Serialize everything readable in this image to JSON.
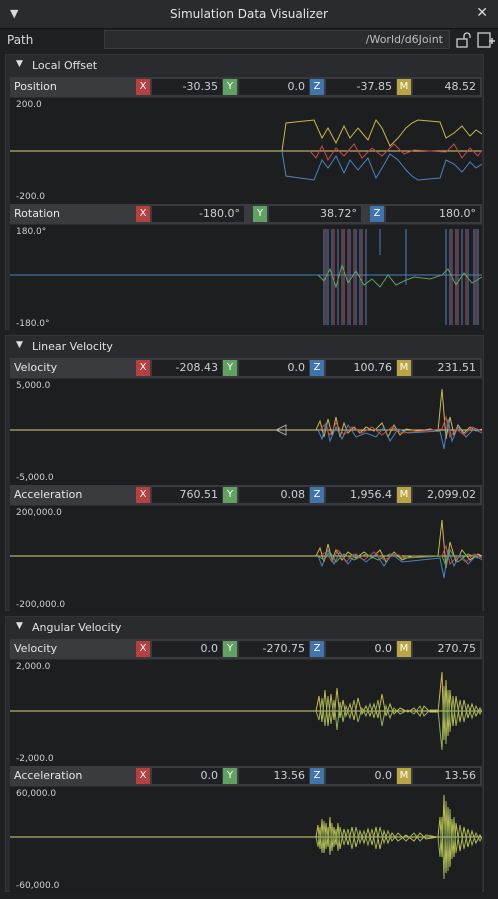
{
  "window": {
    "title": "Simulation Data Visualizer"
  },
  "path": {
    "label": "Path",
    "value": "/World/d6Joint"
  },
  "icons": {
    "collapse": "triangle-down-icon",
    "close": "close-icon",
    "lock": "lock-icon",
    "add": "add-icon"
  },
  "colors": {
    "x": "#b6403f",
    "y": "#5fa261",
    "z": "#3f75ac",
    "m": "#b9a643",
    "ref": "#dcd37a"
  },
  "sections": [
    {
      "title": "Local Offset",
      "rows": [
        {
          "label": "Position",
          "components": [
            {
              "k": "X",
              "v": "-30.35"
            },
            {
              "k": "Y",
              "v": "0.0"
            },
            {
              "k": "Z",
              "v": "-37.85"
            },
            {
              "k": "M",
              "v": "48.52"
            }
          ],
          "axis_max": "200.0",
          "axis_min": "-200.0"
        },
        {
          "label": "Rotation",
          "components": [
            {
              "k": "X",
              "v": "-180.0°"
            },
            {
              "k": "Y",
              "v": "38.72°"
            },
            {
              "k": "Z",
              "v": "180.0°"
            }
          ],
          "axis_max": "180.0°",
          "axis_min": "-180.0°"
        }
      ]
    },
    {
      "title": "Linear Velocity",
      "rows": [
        {
          "label": "Velocity",
          "components": [
            {
              "k": "X",
              "v": "-208.43"
            },
            {
              "k": "Y",
              "v": "0.0"
            },
            {
              "k": "Z",
              "v": "100.76"
            },
            {
              "k": "M",
              "v": "231.51"
            }
          ],
          "axis_max": "5,000.0",
          "axis_min": "-5,000.0"
        },
        {
          "label": "Acceleration",
          "components": [
            {
              "k": "X",
              "v": "760.51"
            },
            {
              "k": "Y",
              "v": "0.08"
            },
            {
              "k": "Z",
              "v": "1,956.4"
            },
            {
              "k": "M",
              "v": "2,099.02"
            }
          ],
          "axis_max": "200,000.0",
          "axis_min": "-200,000.0"
        }
      ]
    },
    {
      "title": "Angular Velocity",
      "rows": [
        {
          "label": "Velocity",
          "components": [
            {
              "k": "X",
              "v": "0.0"
            },
            {
              "k": "Y",
              "v": "-270.75"
            },
            {
              "k": "Z",
              "v": "0.0"
            },
            {
              "k": "M",
              "v": "270.75"
            }
          ],
          "axis_max": "2,000.0",
          "axis_min": "-2,000.0"
        },
        {
          "label": "Acceleration",
          "components": [
            {
              "k": "X",
              "v": "0.0"
            },
            {
              "k": "Y",
              "v": "13.56"
            },
            {
              "k": "Z",
              "v": "0.0"
            },
            {
              "k": "M",
              "v": "13.56"
            }
          ],
          "axis_max": "60,000.0",
          "axis_min": "-60,000.0"
        }
      ]
    }
  ]
}
